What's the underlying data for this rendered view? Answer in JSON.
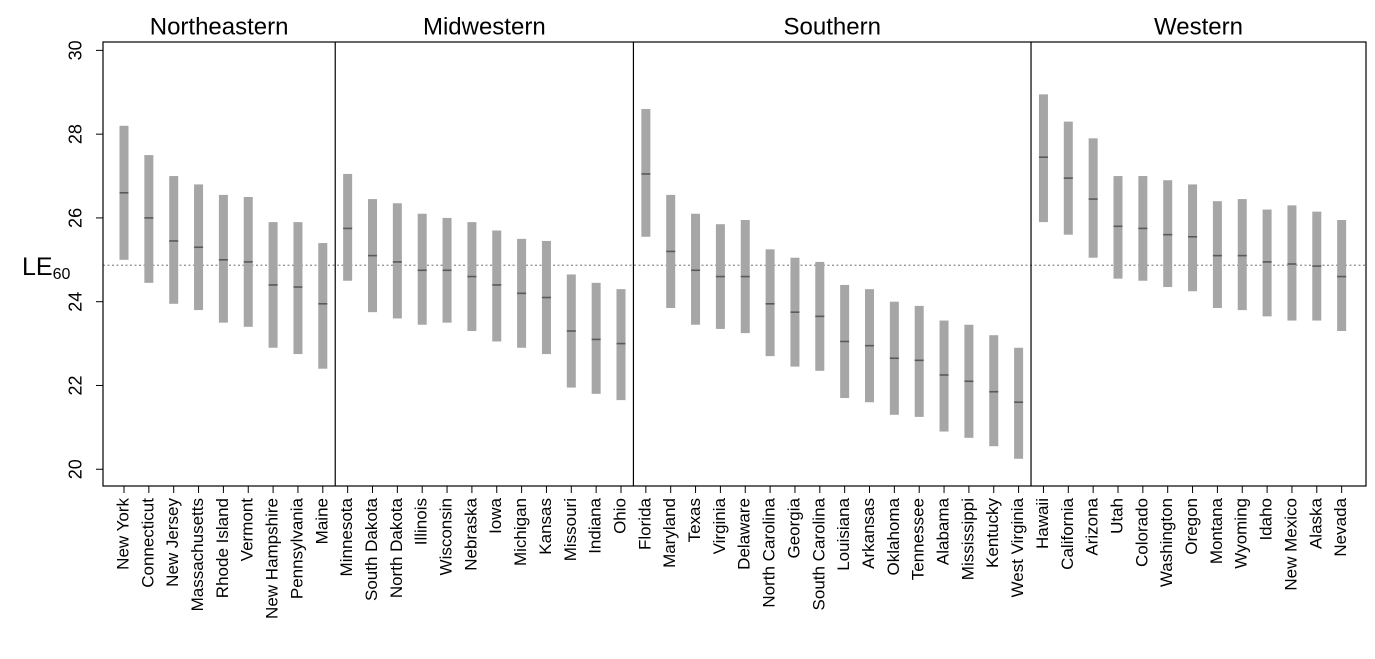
{
  "chart_data": {
    "type": "interval",
    "ylabel": "LE",
    "ylabel_subscript": "60",
    "ylim": [
      19.6,
      30.2
    ],
    "yticks": [
      20,
      22,
      24,
      26,
      28,
      30
    ],
    "reference_line": 24.87,
    "colors": {
      "bar": "#a6a6a6",
      "center": "#5a5a5a",
      "reference": "#8c8c8c",
      "frame": "#000000"
    },
    "panels": [
      {
        "title": "Northeastern",
        "states": [
          {
            "name": "New York",
            "low": 25.0,
            "mid": 26.6,
            "high": 28.2
          },
          {
            "name": "Connecticut",
            "low": 24.45,
            "mid": 26.0,
            "high": 27.5
          },
          {
            "name": "New Jersey",
            "low": 23.95,
            "mid": 25.45,
            "high": 27.0
          },
          {
            "name": "Massachusetts",
            "low": 23.8,
            "mid": 25.3,
            "high": 26.8
          },
          {
            "name": "Rhode Island",
            "low": 23.5,
            "mid": 25.0,
            "high": 26.55
          },
          {
            "name": "Vermont",
            "low": 23.4,
            "mid": 24.95,
            "high": 26.5
          },
          {
            "name": "New Hampshire",
            "low": 22.9,
            "mid": 24.4,
            "high": 25.9
          },
          {
            "name": "Pennsylvania",
            "low": 22.75,
            "mid": 24.35,
            "high": 25.9
          },
          {
            "name": "Maine",
            "low": 22.4,
            "mid": 23.95,
            "high": 25.4
          }
        ]
      },
      {
        "title": "Midwestern",
        "states": [
          {
            "name": "Minnesota",
            "low": 24.5,
            "mid": 25.75,
            "high": 27.05
          },
          {
            "name": "South Dakota",
            "low": 23.75,
            "mid": 25.1,
            "high": 26.45
          },
          {
            "name": "North Dakota",
            "low": 23.6,
            "mid": 24.95,
            "high": 26.35
          },
          {
            "name": "Illinois",
            "low": 23.45,
            "mid": 24.75,
            "high": 26.1
          },
          {
            "name": "Wisconsin",
            "low": 23.5,
            "mid": 24.75,
            "high": 26.0
          },
          {
            "name": "Nebraska",
            "low": 23.3,
            "mid": 24.6,
            "high": 25.9
          },
          {
            "name": "Iowa",
            "low": 23.05,
            "mid": 24.4,
            "high": 25.7
          },
          {
            "name": "Michigan",
            "low": 22.9,
            "mid": 24.2,
            "high": 25.5
          },
          {
            "name": "Kansas",
            "low": 22.75,
            "mid": 24.1,
            "high": 25.45
          },
          {
            "name": "Missouri",
            "low": 21.95,
            "mid": 23.3,
            "high": 24.65
          },
          {
            "name": "Indiana",
            "low": 21.8,
            "mid": 23.1,
            "high": 24.45
          },
          {
            "name": "Ohio",
            "low": 21.65,
            "mid": 23.0,
            "high": 24.3
          }
        ]
      },
      {
        "title": "Southern",
        "states": [
          {
            "name": "Florida",
            "low": 25.55,
            "mid": 27.05,
            "high": 28.6
          },
          {
            "name": "Maryland",
            "low": 23.85,
            "mid": 25.2,
            "high": 26.55
          },
          {
            "name": "Texas",
            "low": 23.45,
            "mid": 24.75,
            "high": 26.1
          },
          {
            "name": "Virginia",
            "low": 23.35,
            "mid": 24.6,
            "high": 25.85
          },
          {
            "name": "Delaware",
            "low": 23.25,
            "mid": 24.6,
            "high": 25.95
          },
          {
            "name": "North Carolina",
            "low": 22.7,
            "mid": 23.95,
            "high": 25.25
          },
          {
            "name": "Georgia",
            "low": 22.45,
            "mid": 23.75,
            "high": 25.05
          },
          {
            "name": "South Carolina",
            "low": 22.35,
            "mid": 23.65,
            "high": 24.95
          },
          {
            "name": "Louisiana",
            "low": 21.7,
            "mid": 23.05,
            "high": 24.4
          },
          {
            "name": "Arkansas",
            "low": 21.6,
            "mid": 22.95,
            "high": 24.3
          },
          {
            "name": "Oklahoma",
            "low": 21.3,
            "mid": 22.65,
            "high": 24.0
          },
          {
            "name": "Tennessee",
            "low": 21.25,
            "mid": 22.6,
            "high": 23.9
          },
          {
            "name": "Alabama",
            "low": 20.9,
            "mid": 22.25,
            "high": 23.55
          },
          {
            "name": "Mississippi",
            "low": 20.75,
            "mid": 22.1,
            "high": 23.45
          },
          {
            "name": "Kentucky",
            "low": 20.55,
            "mid": 21.85,
            "high": 23.2
          },
          {
            "name": "West Virginia",
            "low": 20.25,
            "mid": 21.6,
            "high": 22.9
          }
        ]
      },
      {
        "title": "Western",
        "states": [
          {
            "name": "Hawaii",
            "low": 25.9,
            "mid": 27.45,
            "high": 28.95
          },
          {
            "name": "California",
            "low": 25.6,
            "mid": 26.95,
            "high": 28.3
          },
          {
            "name": "Arizona",
            "low": 25.05,
            "mid": 26.45,
            "high": 27.9
          },
          {
            "name": "Utah",
            "low": 24.55,
            "mid": 25.8,
            "high": 27.0
          },
          {
            "name": "Colorado",
            "low": 24.5,
            "mid": 25.75,
            "high": 27.0
          },
          {
            "name": "Washington",
            "low": 24.35,
            "mid": 25.6,
            "high": 26.9
          },
          {
            "name": "Oregon",
            "low": 24.25,
            "mid": 25.55,
            "high": 26.8
          },
          {
            "name": "Montana",
            "low": 23.85,
            "mid": 25.1,
            "high": 26.4
          },
          {
            "name": "Wyoming",
            "low": 23.8,
            "mid": 25.1,
            "high": 26.45
          },
          {
            "name": "Idaho",
            "low": 23.65,
            "mid": 24.95,
            "high": 26.2
          },
          {
            "name": "New Mexico",
            "low": 23.55,
            "mid": 24.9,
            "high": 26.3
          },
          {
            "name": "Alaska",
            "low": 23.55,
            "mid": 24.85,
            "high": 26.15
          },
          {
            "name": "Nevada",
            "low": 23.3,
            "mid": 24.6,
            "high": 25.95
          }
        ]
      }
    ]
  }
}
